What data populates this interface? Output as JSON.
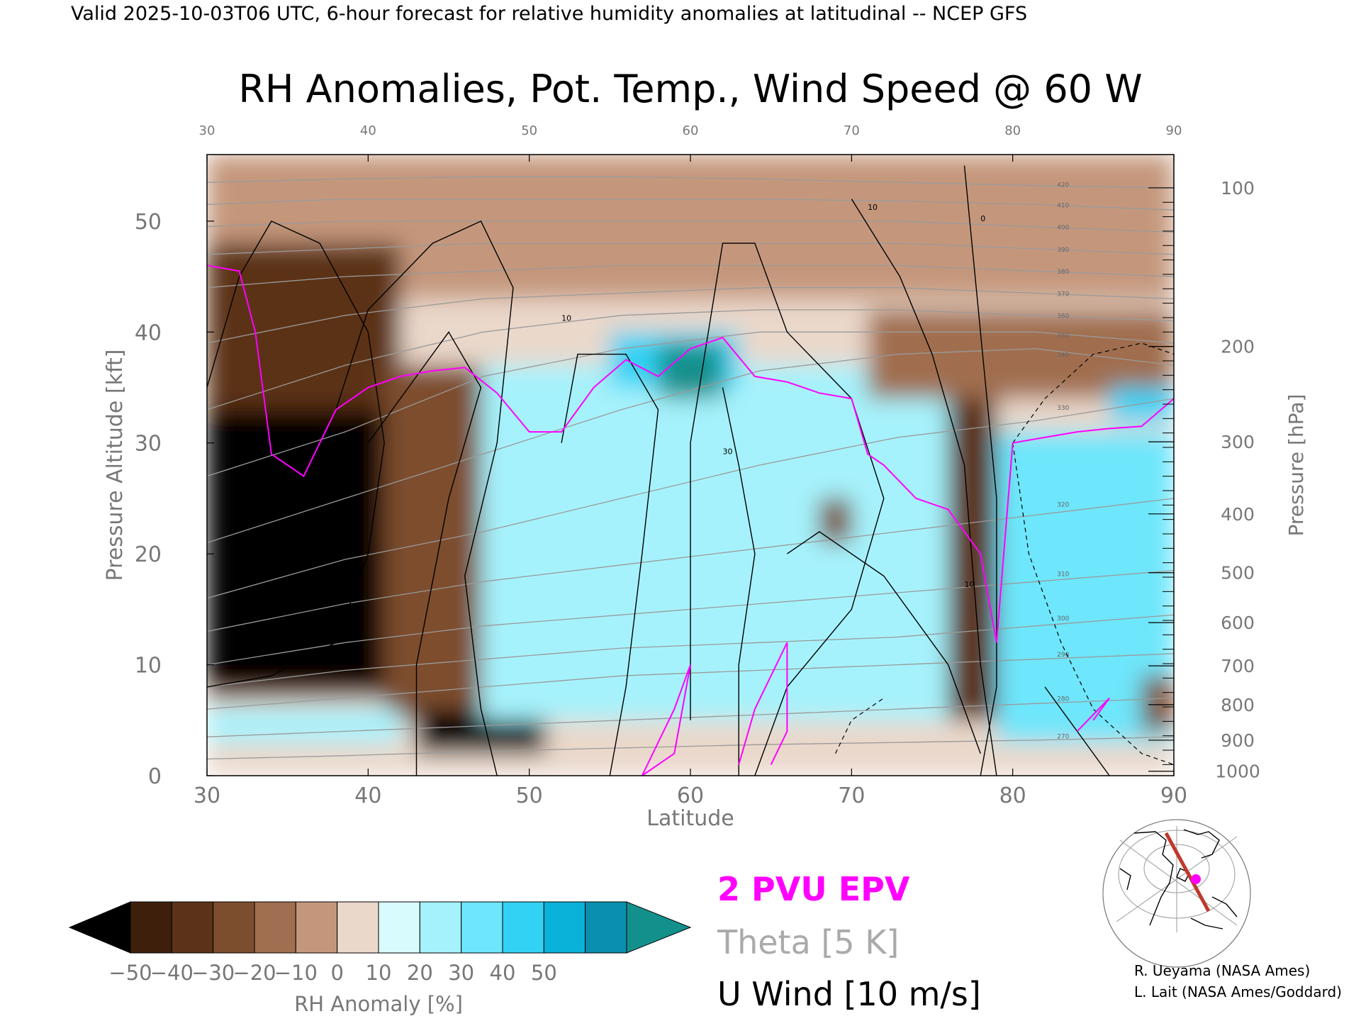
{
  "header": {
    "valid_line": "Valid 2025-10-03T06 UTC, 6-hour forecast for relative humidity anomalies at latitudinal -- NCEP GFS"
  },
  "chart_data": {
    "type": "heatmap",
    "title": "RH Anomalies, Pot. Temp., Wind Speed @ 60 W",
    "xlabel": "Latitude",
    "ylabel": "Pressure Altitude [kft]",
    "y2label": "Pressure [hPa]",
    "xlim": [
      30,
      90
    ],
    "ylim": [
      0,
      56
    ],
    "x_ticks": [
      "30",
      "40",
      "50",
      "60",
      "70",
      "80",
      "90"
    ],
    "y_ticks": [
      "0",
      "10",
      "20",
      "30",
      "40",
      "50"
    ],
    "pressure_ticks": [
      {
        "label": "100",
        "kft": 53.0
      },
      {
        "label": "200",
        "kft": 38.7
      },
      {
        "label": "300",
        "kft": 30.1
      },
      {
        "label": "400",
        "kft": 23.6
      },
      {
        "label": "500",
        "kft": 18.3
      },
      {
        "label": "600",
        "kft": 13.8
      },
      {
        "label": "700",
        "kft": 9.9
      },
      {
        "label": "800",
        "kft": 6.4
      },
      {
        "label": "900",
        "kft": 3.2
      },
      {
        "label": "1000",
        "kft": 0.4
      }
    ],
    "colorbar": {
      "label": "RH Anomaly [%]",
      "ticks": [
        "−50",
        "−40",
        "−30",
        "−20",
        "−10",
        "0",
        "10",
        "20",
        "30",
        "40",
        "50"
      ],
      "colors": [
        "#3e1f0c",
        "#5c3318",
        "#7d4e2e",
        "#a06e50",
        "#c4977c",
        "#ead8cb",
        "#d8fbfe",
        "#a6f2fc",
        "#6ee6fb",
        "#32d2f4",
        "#0ab1d9",
        "#0b8fb0"
      ],
      "under_color": "#000000",
      "over_color": "#14908c"
    },
    "regions": [
      {
        "x": [
          30,
          90
        ],
        "y": [
          0,
          56
        ],
        "rh": 5
      },
      {
        "x": [
          30,
          90
        ],
        "y": [
          43,
          56
        ],
        "rh": -6
      },
      {
        "x": [
          30,
          42
        ],
        "y": [
          7,
          48
        ],
        "rh": -35
      },
      {
        "x": [
          30,
          44
        ],
        "y": [
          8,
          33
        ],
        "rh": -60
      },
      {
        "x": [
          41,
          47
        ],
        "y": [
          5,
          37
        ],
        "rh": -30
      },
      {
        "x": [
          43,
          51
        ],
        "y": [
          2,
          6
        ],
        "rh": -55
      },
      {
        "x": [
          47,
          78
        ],
        "y": [
          5,
          37
        ],
        "rh": 25
      },
      {
        "x": [
          55,
          63
        ],
        "y": [
          35,
          40
        ],
        "rh": 45
      },
      {
        "x": [
          58,
          62
        ],
        "y": [
          34,
          39
        ],
        "rh": 55
      },
      {
        "x": [
          63,
          77
        ],
        "y": [
          20,
          35
        ],
        "rh": 20
      },
      {
        "x": [
          76,
          79
        ],
        "y": [
          5,
          40
        ],
        "rh": -35
      },
      {
        "x": [
          71,
          90
        ],
        "y": [
          34,
          42
        ],
        "rh": -18
      },
      {
        "x": [
          79,
          90
        ],
        "y": [
          3,
          31
        ],
        "rh": 30
      },
      {
        "x": [
          86,
          90
        ],
        "y": [
          32,
          35
        ],
        "rh": 40
      },
      {
        "x": [
          68,
          70
        ],
        "y": [
          21,
          25
        ],
        "rh": -30
      },
      {
        "x": [
          30,
          42
        ],
        "y": [
          3,
          6
        ],
        "rh": 25
      },
      {
        "x": [
          88,
          90
        ],
        "y": [
          4,
          9
        ],
        "rh": -30
      }
    ],
    "theta_label": "Theta [5 K]",
    "theta_contours": [
      {
        "label": "270",
        "y": [
          1.5,
          1.8,
          2.2,
          2.5,
          2.8,
          3.0,
          3.2,
          3.5
        ]
      },
      {
        "label": "280",
        "y": [
          3.5,
          4.0,
          4.5,
          5.0,
          5.5,
          6.0,
          6.5,
          7.0
        ]
      },
      {
        "label": "290",
        "y": [
          6.0,
          7.0,
          8.0,
          9.0,
          9.5,
          10.0,
          10.5,
          11.0
        ]
      },
      {
        "label": "300",
        "y": [
          8.0,
          9.5,
          10.5,
          11.5,
          12.0,
          12.5,
          13.5,
          14.5
        ]
      },
      {
        "label": "310",
        "y": [
          10.0,
          12.0,
          13.5,
          14.5,
          15.5,
          16.5,
          17.5,
          18.5
        ]
      },
      {
        "label": "320",
        "y": [
          13.0,
          15.5,
          17.5,
          19.0,
          20.5,
          22.0,
          23.5,
          25.0
        ]
      },
      {
        "label": "330",
        "y": [
          16.0,
          19.5,
          22.0,
          25.0,
          28.0,
          30.5,
          32.0,
          34.0
        ]
      },
      {
        "label": "340",
        "y": [
          21.0,
          25.0,
          29.0,
          33.0,
          36.5,
          38.0,
          38.5,
          37.0
        ]
      },
      {
        "label": "350",
        "y": [
          27.0,
          31.0,
          36.0,
          38.5,
          40.0,
          40.0,
          40.0,
          39.0
        ]
      },
      {
        "label": "360",
        "y": [
          33.0,
          37.0,
          40.0,
          41.5,
          42.0,
          42.0,
          41.5,
          41.0
        ]
      },
      {
        "label": "370",
        "y": [
          39.0,
          41.5,
          43.0,
          43.5,
          44.0,
          44.0,
          43.5,
          43.0
        ]
      },
      {
        "label": "380",
        "y": [
          44.0,
          45.0,
          45.5,
          46.0,
          46.0,
          46.0,
          45.5,
          45.0
        ]
      },
      {
        "label": "390",
        "y": [
          47.0,
          47.5,
          48.0,
          48.0,
          48.0,
          48.0,
          47.5,
          47.0
        ]
      },
      {
        "label": "400",
        "y": [
          49.5,
          50.0,
          50.0,
          50.0,
          50.0,
          50.0,
          49.5,
          49.0
        ]
      },
      {
        "label": "410",
        "y": [
          51.5,
          52.0,
          52.0,
          52.0,
          52.0,
          51.8,
          51.5,
          51.0
        ]
      },
      {
        "label": "420",
        "y": [
          53.5,
          53.8,
          54.0,
          54.0,
          53.8,
          53.5,
          53.2,
          53.0
        ]
      }
    ],
    "theta_x": [
      30,
      38.57,
      47.14,
      55.71,
      64.29,
      72.86,
      81.43,
      90
    ],
    "epv_label": "2 PVU EPV",
    "epv_line": {
      "x": [
        30,
        32,
        33,
        34,
        35,
        36,
        38,
        40,
        42,
        44,
        46,
        48,
        50,
        52,
        54,
        56,
        58,
        60,
        62,
        64,
        66,
        68,
        70,
        71,
        72,
        74,
        76,
        78,
        79,
        80,
        82,
        84,
        86,
        88,
        90
      ],
      "y": [
        46,
        45.5,
        40,
        29,
        28,
        27,
        33,
        35,
        36,
        36.5,
        36.8,
        34.5,
        31,
        31,
        35,
        37.5,
        36,
        38.5,
        39.5,
        36,
        35.5,
        34.5,
        34,
        29,
        28,
        25,
        24,
        20,
        12,
        30,
        30.5,
        31,
        31.3,
        31.5,
        34
      ]
    },
    "uwind_label": "U Wind [10 m/s]",
    "uwind_contour_labels": [
      "10",
      "30",
      "0"
    ]
  },
  "legend_text": {
    "epv": "2 PVU EPV",
    "theta": "Theta [5 K]",
    "uwind": "U Wind [10 m/s]"
  },
  "map_inset": {
    "description_icon": "cross-section-location-map",
    "line_color": "#c0392b",
    "marker_color": "#ff00ff"
  },
  "credits": {
    "line1": "R. Ueyama (NASA Ames)",
    "line2": "L. Lait (NASA Ames/Goddard)"
  },
  "colors": {
    "epv": "#ff00ff",
    "theta": "#9a9a9a",
    "uwind": "#000000"
  }
}
